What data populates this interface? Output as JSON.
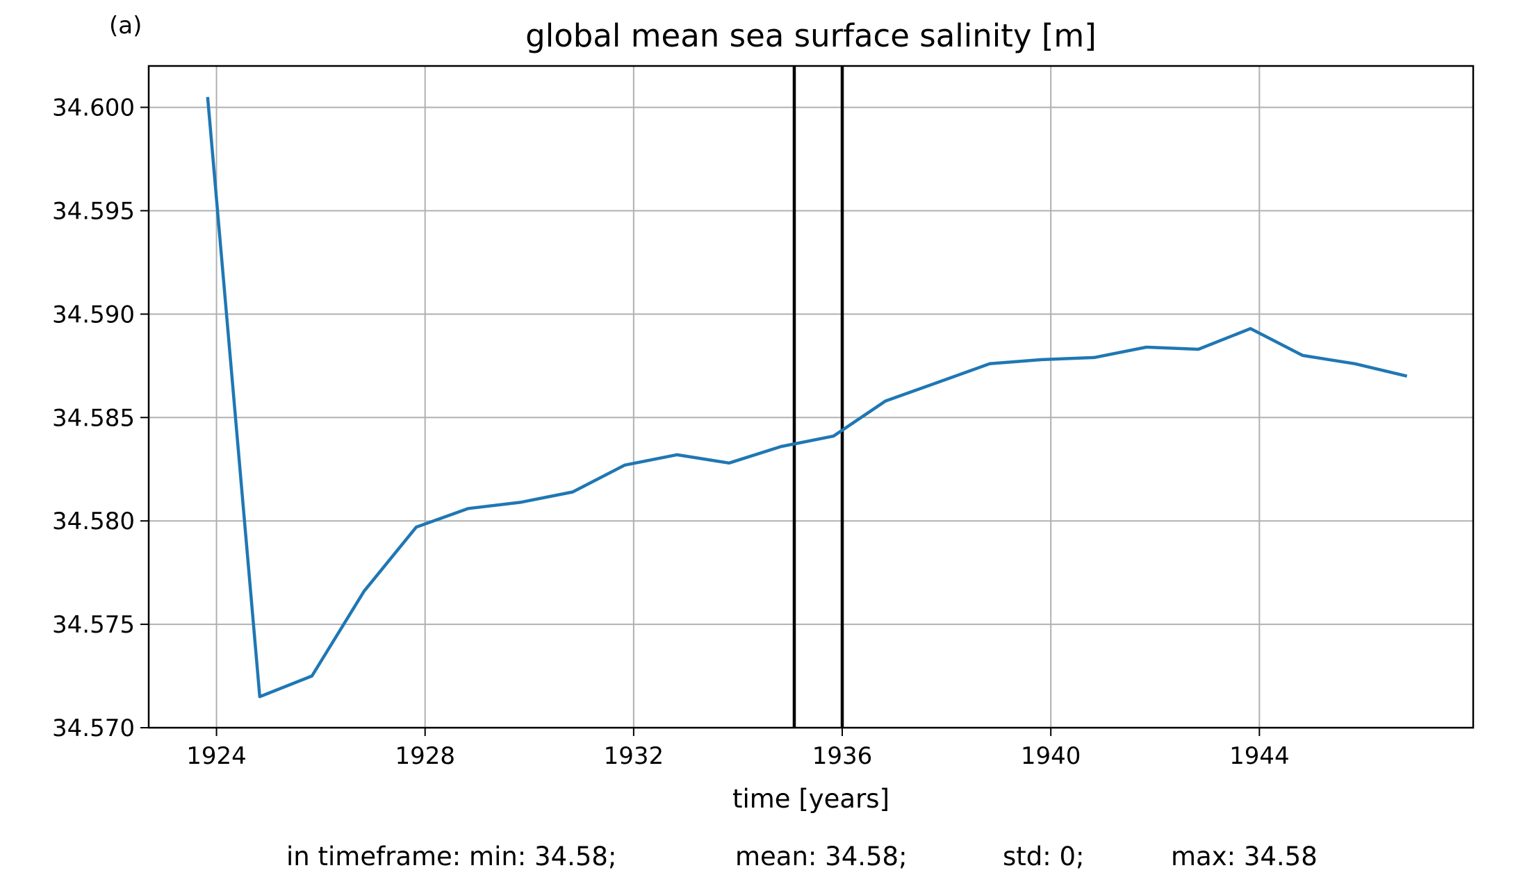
{
  "panel_label": "(a)",
  "chart_data": {
    "type": "line",
    "title": "global mean sea surface salinity [m]",
    "xlabel": "time [years]",
    "ylabel": "",
    "xlim": [
      1922.7,
      1948.1
    ],
    "ylim": [
      34.57,
      34.602
    ],
    "grid": true,
    "x_ticks": [
      1924,
      1928,
      1932,
      1936,
      1940,
      1944
    ],
    "x_tick_labels": [
      "1924",
      "1928",
      "1932",
      "1936",
      "1940",
      "1944"
    ],
    "y_ticks": [
      34.57,
      34.575,
      34.58,
      34.585,
      34.59,
      34.595,
      34.6
    ],
    "y_tick_labels": [
      "34.570",
      "34.575",
      "34.580",
      "34.585",
      "34.590",
      "34.595",
      "34.600"
    ],
    "vlines": [
      1935.08,
      1936.0
    ],
    "series": [
      {
        "color": "#1f77b4",
        "x": [
          1923.83,
          1924.83,
          1925.83,
          1926.83,
          1927.83,
          1928.83,
          1929.83,
          1930.83,
          1931.83,
          1932.83,
          1933.83,
          1934.83,
          1935.83,
          1936.83,
          1937.83,
          1938.83,
          1939.83,
          1940.83,
          1941.83,
          1942.83,
          1943.83,
          1944.83,
          1945.83,
          1946.83
        ],
        "y": [
          34.6005,
          34.5715,
          34.5725,
          34.5766,
          34.5797,
          34.5806,
          34.5809,
          34.5814,
          34.5827,
          34.5832,
          34.5828,
          34.5836,
          34.5841,
          34.5858,
          34.5867,
          34.5876,
          34.5878,
          34.5879,
          34.5884,
          34.5883,
          34.5893,
          34.588,
          34.5876,
          34.587
        ]
      }
    ]
  },
  "stats": {
    "min": "in timeframe: min: 34.58;",
    "mean": "mean: 34.58;",
    "std": "std: 0;",
    "max": "max: 34.58"
  }
}
